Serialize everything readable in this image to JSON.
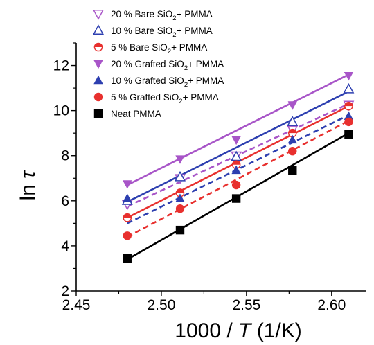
{
  "chart_data": {
    "type": "scatter",
    "title": "",
    "xlabel_parts": [
      "1000 / ",
      "T",
      " (1/K)"
    ],
    "ylabel_parts": [
      "ln ",
      "τ"
    ],
    "xlim": [
      2.45,
      2.62
    ],
    "ylim": [
      2,
      13
    ],
    "xticks": [
      2.45,
      2.5,
      2.55,
      2.6
    ],
    "xtick_labels": [
      "2.45",
      "2.50",
      "2.55",
      "2.60"
    ],
    "yticks": [
      2,
      4,
      6,
      8,
      10,
      12
    ],
    "ytick_labels": [
      "2",
      "4",
      "6",
      "8",
      "10",
      "12"
    ],
    "grid": false,
    "legend_placement": "top-left",
    "x": [
      2.48,
      2.511,
      2.544,
      2.577,
      2.61
    ],
    "series": [
      {
        "name_parts": [
          "20 % Bare SiO",
          "2",
          "+ PMMA"
        ],
        "color": "#a855c8",
        "marker": "triangle-down-open",
        "line": "dashed",
        "values": [
          5.85,
          7.0,
          8.0,
          9.15,
          10.25
        ],
        "fit": [
          5.75,
          10.3
        ]
      },
      {
        "name_parts": [
          "10 % Bare SiO",
          "2",
          "+ PMMA"
        ],
        "color": "#2d3fb0",
        "marker": "triangle-up-open",
        "line": "solid",
        "values": [
          6.0,
          7.05,
          7.95,
          9.5,
          10.95
        ],
        "fit": [
          5.95,
          10.85
        ]
      },
      {
        "name_parts": [
          "5 % Bare SiO",
          "2",
          "+ PMMA"
        ],
        "color": "#e8302e",
        "marker": "circle-half",
        "line": "solid",
        "values": [
          5.25,
          6.35,
          7.6,
          9.0,
          10.2
        ],
        "fit": [
          5.25,
          10.2
        ]
      },
      {
        "name_parts": [
          "20 % Grafted SiO",
          "2",
          "+ PMMA"
        ],
        "color": "#a855c8",
        "marker": "triangle-down",
        "line": "solid",
        "values": [
          6.75,
          7.85,
          8.7,
          10.25,
          11.55
        ],
        "fit": [
          6.7,
          11.6
        ]
      },
      {
        "name_parts": [
          "10 % Grafted SiO",
          "2",
          "+ PMMA"
        ],
        "color": "#2d3fb0",
        "marker": "triangle-up",
        "line": "dashed",
        "values": [
          6.1,
          6.1,
          7.35,
          8.7,
          9.75
        ],
        "fit": [
          5.0,
          9.8
        ]
      },
      {
        "name_parts": [
          "5 % Grafted SiO",
          "2",
          "+ PMMA"
        ],
        "color": "#e8302e",
        "marker": "circle",
        "line": "dashed",
        "values": [
          4.45,
          5.65,
          6.7,
          8.2,
          9.5
        ],
        "fit": [
          4.4,
          9.55
        ]
      },
      {
        "name_parts": [
          "Neat PMMA",
          "",
          ""
        ],
        "color": "#000000",
        "marker": "square",
        "line": "solid",
        "values": [
          3.45,
          4.7,
          6.1,
          7.35,
          8.95
        ],
        "fit": [
          3.4,
          9.0
        ]
      }
    ]
  }
}
